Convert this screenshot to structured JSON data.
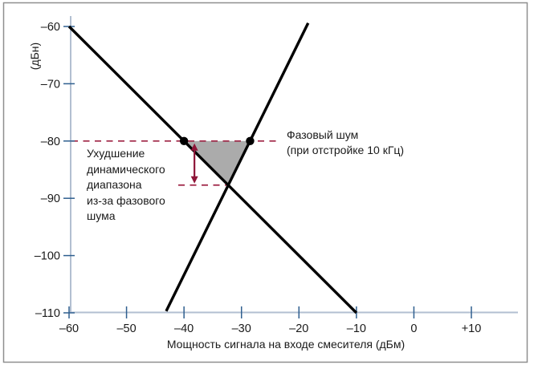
{
  "figure": {
    "background": "#ffffff",
    "border_color": "#8f8f8f"
  },
  "chart_data": {
    "type": "line",
    "title": "",
    "xlabel": "Мощность сигнала на входе смесителя (дБм)",
    "ylabel": "(дБн)",
    "xlim": [
      -60,
      10
    ],
    "ylim": [
      -110,
      -60
    ],
    "grid": false,
    "x_ticks": [
      -60,
      -50,
      -40,
      -30,
      -20,
      -10,
      0,
      10
    ],
    "x_tick_labels": [
      "–60",
      "–50",
      "–40",
      "–30",
      "–20",
      "–10",
      "0",
      "+10"
    ],
    "y_ticks": [
      -60,
      -70,
      -80,
      -90,
      -100,
      -110
    ],
    "y_tick_labels": [
      "–60",
      "–70",
      "–80",
      "–90",
      "–100",
      "–110"
    ],
    "series": [
      {
        "name": "signal-response-line",
        "color": "#000000",
        "points": [
          [
            -60,
            -60
          ],
          [
            -10,
            -110
          ]
        ]
      },
      {
        "name": "intermod-distortion-line",
        "color": "#000000",
        "points": [
          [
            -43.1,
            -109.7
          ],
          [
            -18.4,
            -59.4
          ]
        ]
      }
    ],
    "phase_noise_level": -80,
    "markers": [
      [
        -40,
        -80
      ],
      [
        -28.5,
        -80
      ]
    ],
    "intersection": [
      -32.3,
      -87.7
    ],
    "degradation_db": 7.7,
    "colors": {
      "line": "#000000",
      "axis": "#b2bfd1",
      "tick": "#2f5f8f",
      "tick_label": "#1a1a1a",
      "region_fill": "#ababab",
      "dashed_line": "#9e2243",
      "arrow": "#8e1538",
      "annotation_text": "#1a1a1a"
    },
    "annotations": {
      "phase_noise": {
        "line1": "Фазовый шум",
        "line2": "(при отстройке 10 кГц)"
      },
      "degradation": {
        "line1": "Ухудшение",
        "line2": "динамического",
        "line3": "диапазона",
        "line4": "из-за фазового",
        "line5": "шума"
      }
    }
  }
}
